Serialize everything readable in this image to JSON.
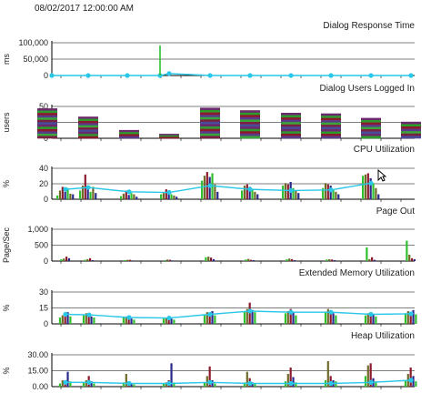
{
  "timestamp": "08/02/2017 12:00:00 AM",
  "colors": {
    "axis": "#000000",
    "grid": "#c8c8c8",
    "line": "#29c7e8",
    "green": "#2fbf2f",
    "darkred": "#8b1a2c",
    "navy": "#2a2a8c",
    "olive": "#6f6a2a"
  },
  "chart_data": [
    {
      "type": "line",
      "title": "Dialog Response Time",
      "ylabel": "ms",
      "yticks": [
        "0",
        "50,000",
        "100,000"
      ],
      "ylim": [
        0,
        100000
      ],
      "x": [
        1,
        2,
        3,
        4,
        5,
        6,
        7,
        8,
        9,
        10,
        11
      ],
      "series": [
        {
          "values": [
            0,
            0,
            0,
            0,
            6000,
            0,
            0,
            0,
            0,
            0,
            0
          ]
        }
      ],
      "spikes": [
        {
          "x": 4.0,
          "value": 92000,
          "color": "green"
        }
      ]
    },
    {
      "type": "bar",
      "title": "Dialog Users Logged In",
      "ylabel": "users",
      "yticks": [
        "0",
        "25",
        "50"
      ],
      "ylim": [
        0,
        50
      ],
      "categories": [
        1,
        2,
        3,
        4,
        5,
        6,
        7,
        8,
        9,
        10
      ],
      "values": [
        47,
        34,
        13,
        7,
        48,
        44,
        40,
        39,
        32,
        26
      ]
    },
    {
      "type": "bar",
      "title": "CPU Utilization",
      "ylabel": "%",
      "yticks": [
        "0",
        "20",
        "40"
      ],
      "ylim": [
        0,
        50
      ],
      "groups": [
        {
          "bars": [
            6,
            14,
            20,
            12,
            18,
            9,
            8
          ],
          "line": 16
        },
        {
          "bars": [
            14,
            22,
            40,
            18,
            12,
            20,
            10
          ],
          "line": 19
        },
        {
          "bars": [
            5,
            9,
            14,
            7,
            10,
            8,
            4
          ],
          "line": 12
        },
        {
          "bars": [
            8,
            10,
            16,
            12,
            8,
            6,
            4
          ],
          "line": 11
        },
        {
          "bars": [
            30,
            38,
            44,
            36,
            42,
            24,
            12
          ],
          "line": 22
        },
        {
          "bars": [
            14,
            22,
            24,
            20,
            16,
            12,
            8
          ],
          "line": 16
        },
        {
          "bars": [
            22,
            26,
            24,
            28,
            18,
            14,
            10
          ],
          "line": 14
        },
        {
          "bars": [
            18,
            26,
            24,
            22,
            16,
            12,
            8
          ],
          "line": 15
        },
        {
          "bars": [
            38,
            40,
            42,
            34,
            26,
            18,
            8
          ],
          "line": 26
        }
      ],
      "line_values": [
        16,
        19,
        12,
        11,
        22,
        16,
        14,
        15,
        26
      ]
    },
    {
      "type": "bar",
      "title": "Page Out",
      "ylabel": "Page/Sec",
      "yticks": [
        "0",
        "500",
        "1,000"
      ],
      "ylim": [
        0,
        1000
      ],
      "groups": [
        {
          "bars": [
            60,
            80,
            140,
            90
          ]
        },
        {
          "bars": [
            40,
            60,
            90,
            30
          ]
        },
        {
          "bars": [
            30,
            40,
            40,
            20
          ]
        },
        {
          "bars": [
            30,
            50,
            40,
            20
          ]
        },
        {
          "bars": [
            120,
            140,
            110,
            60
          ]
        },
        {
          "bars": [
            50,
            70,
            40,
            30
          ]
        },
        {
          "bars": [
            60,
            80,
            60,
            30
          ]
        },
        {
          "bars": [
            50,
            60,
            50,
            30
          ]
        },
        {
          "bars": [
            430,
            60,
            120,
            40
          ]
        },
        {
          "bars": [
            640,
            200,
            90,
            60
          ]
        }
      ]
    },
    {
      "type": "bar",
      "title": "Extended Memory Utilization",
      "ylabel": "%",
      "yticks": [
        "0",
        "15",
        "30"
      ],
      "ylim": [
        0,
        30
      ],
      "groups": [
        {
          "bars": [
            6,
            8,
            9,
            11,
            7
          ]
        },
        {
          "bars": [
            8,
            10,
            9,
            7,
            6
          ]
        },
        {
          "bars": [
            6,
            7,
            6,
            5,
            4
          ]
        },
        {
          "bars": [
            5,
            6,
            7,
            5,
            4
          ]
        },
        {
          "bars": [
            9,
            11,
            10,
            12,
            8
          ]
        },
        {
          "bars": [
            12,
            14,
            20,
            13,
            11
          ]
        },
        {
          "bars": [
            10,
            12,
            14,
            11,
            8
          ]
        },
        {
          "bars": [
            11,
            14,
            12,
            10,
            8
          ]
        },
        {
          "bars": [
            8,
            10,
            11,
            9,
            7
          ]
        },
        {
          "bars": [
            10,
            12,
            11,
            13,
            9
          ]
        }
      ],
      "line_values": [
        9,
        8.5,
        6,
        5.5,
        9,
        12,
        11,
        11,
        9,
        9.5
      ]
    },
    {
      "type": "bar",
      "title": "Heap Utilization",
      "ylabel": "%",
      "yticks": [
        "0.00",
        "15.00",
        "30.00"
      ],
      "ylim": [
        0,
        30
      ],
      "groups": [
        {
          "bars": [
            3,
            6,
            4,
            14,
            5
          ]
        },
        {
          "bars": [
            4,
            6,
            10,
            5,
            3
          ]
        },
        {
          "bars": [
            4,
            12,
            5,
            3,
            2
          ]
        },
        {
          "bars": [
            3,
            4,
            6,
            22,
            4
          ]
        },
        {
          "bars": [
            4,
            10,
            19,
            6,
            3
          ]
        },
        {
          "bars": [
            4,
            14,
            8,
            4,
            3
          ]
        },
        {
          "bars": [
            5,
            12,
            18,
            9,
            4
          ]
        },
        {
          "bars": [
            6,
            24,
            10,
            6,
            5
          ]
        },
        {
          "bars": [
            10,
            20,
            22,
            8,
            5
          ]
        },
        {
          "bars": [
            6,
            12,
            18,
            10,
            5
          ]
        }
      ],
      "line_values": [
        4,
        4,
        3,
        3,
        4,
        3,
        3,
        3,
        4,
        6
      ]
    }
  ]
}
